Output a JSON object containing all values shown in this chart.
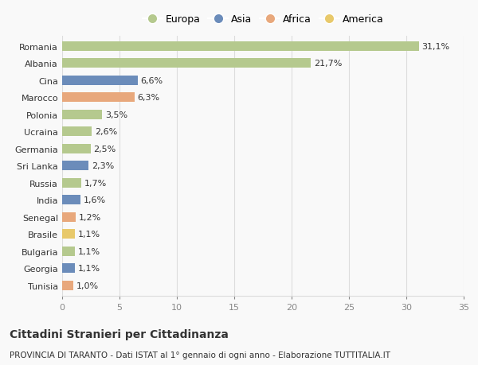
{
  "categories": [
    "Tunisia",
    "Georgia",
    "Bulgaria",
    "Brasile",
    "Senegal",
    "India",
    "Russia",
    "Sri Lanka",
    "Germania",
    "Ucraina",
    "Polonia",
    "Marocco",
    "Cina",
    "Albania",
    "Romania"
  ],
  "values": [
    1.0,
    1.1,
    1.1,
    1.1,
    1.2,
    1.6,
    1.7,
    2.3,
    2.5,
    2.6,
    3.5,
    6.3,
    6.6,
    21.7,
    31.1
  ],
  "labels": [
    "1,0%",
    "1,1%",
    "1,1%",
    "1,1%",
    "1,2%",
    "1,6%",
    "1,7%",
    "2,3%",
    "2,5%",
    "2,6%",
    "3,5%",
    "6,3%",
    "6,6%",
    "21,7%",
    "31,1%"
  ],
  "colors": [
    "#e8a87c",
    "#6b8cba",
    "#b5c98e",
    "#e8c96b",
    "#e8a87c",
    "#6b8cba",
    "#b5c98e",
    "#6b8cba",
    "#b5c98e",
    "#b5c98e",
    "#b5c98e",
    "#e8a87c",
    "#6b8cba",
    "#b5c98e",
    "#b5c98e"
  ],
  "legend": [
    {
      "label": "Europa",
      "color": "#b5c98e"
    },
    {
      "label": "Asia",
      "color": "#6b8cba"
    },
    {
      "label": "Africa",
      "color": "#e8a87c"
    },
    {
      "label": "America",
      "color": "#e8c96b"
    }
  ],
  "title": "Cittadini Stranieri per Cittadinanza",
  "subtitle": "PROVINCIA DI TARANTO - Dati ISTAT al 1° gennaio di ogni anno - Elaborazione TUTTITALIA.IT",
  "xlim": [
    0,
    35
  ],
  "xticks": [
    0,
    5,
    10,
    15,
    20,
    25,
    30,
    35
  ],
  "background_color": "#f9f9f9",
  "grid_color": "#dddddd",
  "text_color": "#333333",
  "label_fontsize": 8,
  "tick_fontsize": 8,
  "title_fontsize": 10,
  "subtitle_fontsize": 7.5,
  "bar_height": 0.55
}
